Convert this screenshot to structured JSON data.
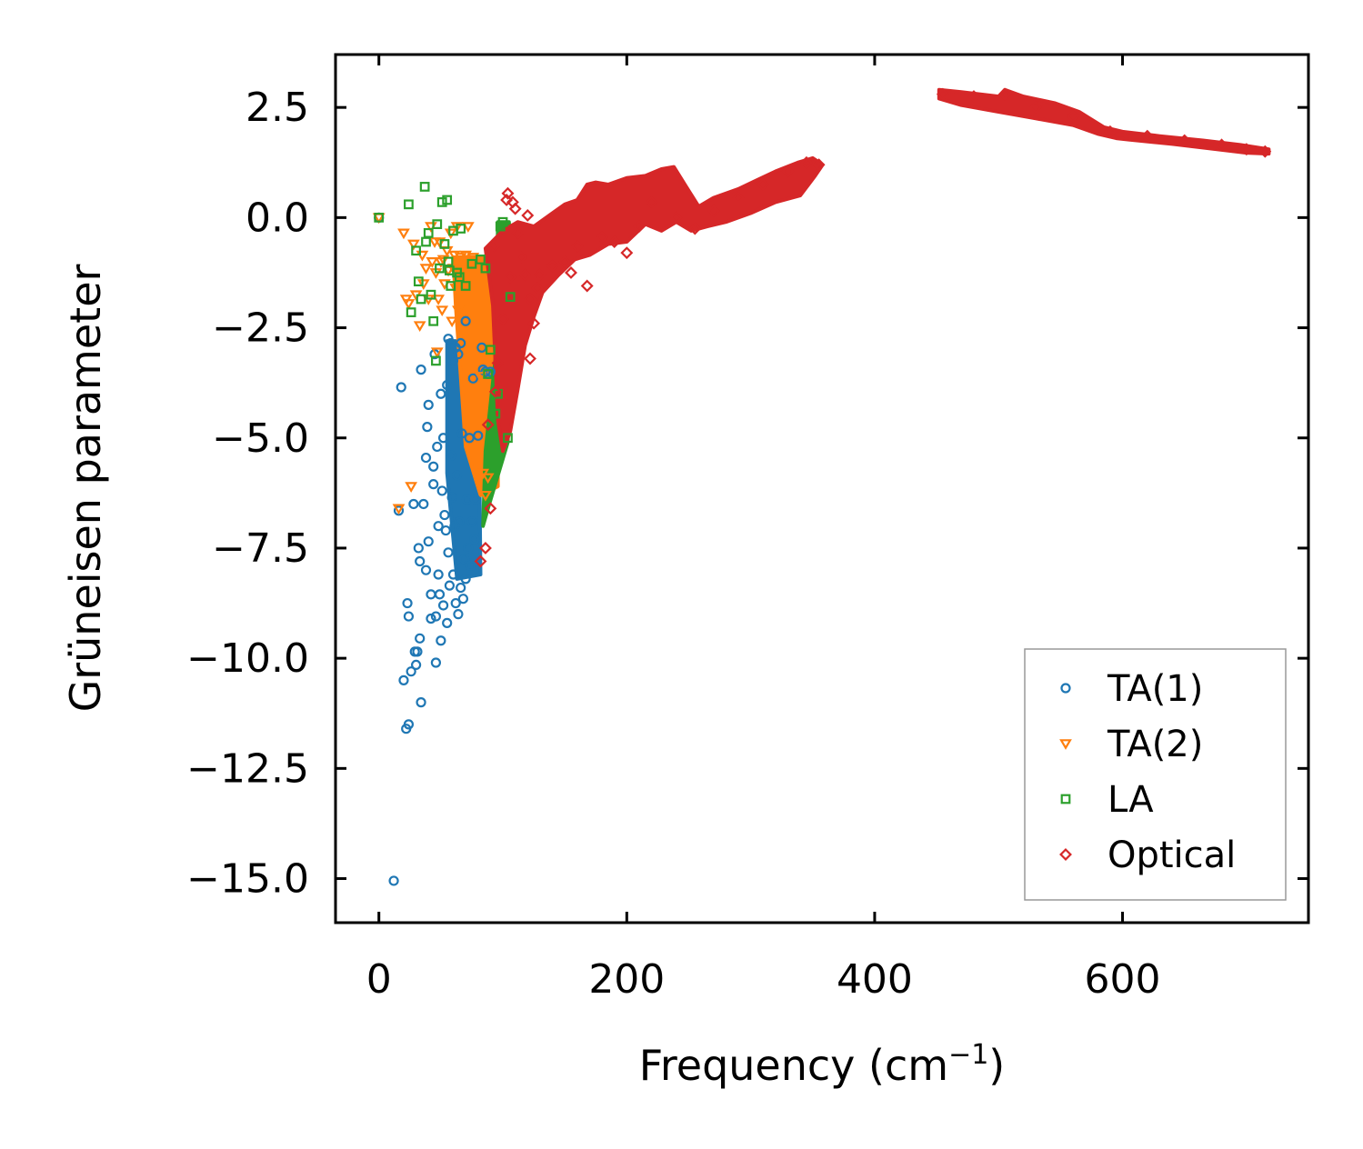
{
  "chart_data": {
    "type": "scatter",
    "title": "",
    "xlabel": "Frequency (cm",
    "xlabel_sup": "−1",
    "xlabel_suffix": ")",
    "ylabel": "Grüneisen parameter",
    "xlim": [
      -35,
      750
    ],
    "ylim": [
      -16,
      3.7
    ],
    "xticks": [
      0,
      200,
      400,
      600
    ],
    "xtick_labels": [
      "0",
      "200",
      "400",
      "600"
    ],
    "yticks": [
      2.5,
      0.0,
      -2.5,
      -5.0,
      -7.5,
      -10.0,
      -12.5,
      -15.0
    ],
    "ytick_labels": [
      "2.5",
      "0.0",
      "−2.5",
      "−5.0",
      "−7.5",
      "−10.0",
      "−12.5",
      "−15.0"
    ],
    "grid": false,
    "legend_position": "bottom-right",
    "series": [
      {
        "name": "TA(1)",
        "marker": "circle",
        "color": "#1f77b4",
        "points": [
          [
            0,
            0
          ],
          [
            12,
            -15.05
          ],
          [
            16,
            -6.65
          ],
          [
            18,
            -3.85
          ],
          [
            20,
            -10.5
          ],
          [
            22,
            -11.6
          ],
          [
            24,
            -11.5
          ],
          [
            23,
            -8.75
          ],
          [
            24,
            -9.05
          ],
          [
            26,
            -10.3
          ],
          [
            28,
            -6.5
          ],
          [
            29,
            -9.85
          ],
          [
            30,
            -10.15
          ],
          [
            31,
            -9.85
          ],
          [
            32,
            -7.5
          ],
          [
            33,
            -7.8
          ],
          [
            33,
            -9.55
          ],
          [
            34,
            -11.0
          ],
          [
            34,
            -3.45
          ],
          [
            36,
            -6.5
          ],
          [
            38,
            -5.45
          ],
          [
            38,
            -8.0
          ],
          [
            39,
            -4.75
          ],
          [
            40,
            -4.25
          ],
          [
            40,
            -7.35
          ],
          [
            42,
            -8.55
          ],
          [
            42,
            -9.1
          ],
          [
            44,
            -5.65
          ],
          [
            44,
            -6.05
          ],
          [
            45,
            -3.1
          ],
          [
            46,
            -9.05
          ],
          [
            46,
            -10.1
          ],
          [
            47,
            -5.2
          ],
          [
            48,
            -7.0
          ],
          [
            48,
            -8.1
          ],
          [
            49,
            -8.55
          ],
          [
            50,
            -4.0
          ],
          [
            50,
            -9.6
          ],
          [
            51,
            -6.2
          ],
          [
            52,
            -5.0
          ],
          [
            52,
            -8.8
          ],
          [
            53,
            -6.75
          ],
          [
            54,
            -7.1
          ],
          [
            55,
            -3.8
          ],
          [
            55,
            -9.2
          ],
          [
            56,
            -2.75
          ],
          [
            56,
            -7.6
          ],
          [
            57,
            -8.35
          ],
          [
            58,
            -5.4
          ],
          [
            58,
            -2.85
          ],
          [
            59,
            -6.35
          ],
          [
            60,
            -3.25
          ],
          [
            60,
            -8.1
          ],
          [
            61,
            -7.0
          ],
          [
            62,
            -2.95
          ],
          [
            62,
            -8.75
          ],
          [
            63,
            -5.85
          ],
          [
            64,
            -9.0
          ],
          [
            64,
            -3.1
          ],
          [
            65,
            -6.9
          ],
          [
            66,
            -8.4
          ],
          [
            66,
            -2.85
          ],
          [
            67,
            -4.9
          ],
          [
            68,
            -8.65
          ],
          [
            69,
            -7.75
          ],
          [
            70,
            -2.35
          ],
          [
            70,
            -8.2
          ],
          [
            71,
            -6.4
          ],
          [
            72,
            -7.5
          ],
          [
            73,
            -5.0
          ],
          [
            74,
            -7.9
          ],
          [
            75,
            -6.9
          ],
          [
            76,
            -3.65
          ],
          [
            77,
            -7.3
          ],
          [
            78,
            -6.4
          ],
          [
            80,
            -4.95
          ],
          [
            83,
            -2.95
          ],
          [
            84,
            -3.45
          ],
          [
            86,
            -3.5
          ],
          [
            88,
            -3.55
          ],
          [
            90,
            -3.5
          ]
        ],
        "dense_band": [
          [
            55,
            -2.8
          ],
          [
            80,
            -2.8
          ],
          [
            82,
            -8.1
          ],
          [
            63,
            -8.2
          ],
          [
            55,
            -5.8
          ]
        ]
      },
      {
        "name": "TA(2)",
        "marker": "triangle-down",
        "color": "#ff7f0e",
        "points": [
          [
            0,
            0
          ],
          [
            16,
            -6.6
          ],
          [
            20,
            -0.35
          ],
          [
            22,
            -1.85
          ],
          [
            24,
            -1.95
          ],
          [
            26,
            -6.1
          ],
          [
            28,
            -0.6
          ],
          [
            30,
            -1.75
          ],
          [
            33,
            -2.45
          ],
          [
            35,
            -0.85
          ],
          [
            36,
            -1.5
          ],
          [
            38,
            -1.15
          ],
          [
            40,
            -1.85
          ],
          [
            42,
            -0.2
          ],
          [
            43,
            -1.0
          ],
          [
            45,
            -0.55
          ],
          [
            46,
            -1.25
          ],
          [
            47,
            -3.05
          ],
          [
            48,
            -1.85
          ],
          [
            49,
            -0.55
          ],
          [
            50,
            -1.0
          ],
          [
            51,
            -2.1
          ],
          [
            52,
            -0.95
          ],
          [
            53,
            -1.5
          ],
          [
            55,
            -0.75
          ],
          [
            56,
            -1.2
          ],
          [
            58,
            -0.35
          ],
          [
            59,
            -2.35
          ],
          [
            60,
            -1.15
          ],
          [
            61,
            -0.85
          ],
          [
            62,
            -1.6
          ],
          [
            63,
            -0.2
          ],
          [
            64,
            -2.1
          ],
          [
            66,
            -0.9
          ],
          [
            68,
            -1.2
          ],
          [
            70,
            -0.85
          ],
          [
            72,
            -0.2
          ],
          [
            74,
            -0.95
          ],
          [
            76,
            -0.9
          ],
          [
            78,
            -1.0
          ],
          [
            80,
            -1.0
          ],
          [
            82,
            -3.6
          ],
          [
            84,
            -5.8
          ],
          [
            86,
            -6.3
          ],
          [
            88,
            -5.9
          ]
        ],
        "dense_band": [
          [
            60,
            -0.9
          ],
          [
            88,
            -0.9
          ],
          [
            96,
            -2.8
          ],
          [
            96,
            -6.1
          ],
          [
            82,
            -6.3
          ],
          [
            70,
            -5.2
          ],
          [
            62,
            -2.0
          ]
        ]
      },
      {
        "name": "LA",
        "marker": "square",
        "color": "#2ca02c",
        "points": [
          [
            0,
            0
          ],
          [
            24,
            0.3
          ],
          [
            26,
            -2.15
          ],
          [
            30,
            -0.75
          ],
          [
            32,
            -1.45
          ],
          [
            34,
            -1.85
          ],
          [
            37,
            0.7
          ],
          [
            38,
            -0.55
          ],
          [
            40,
            -0.35
          ],
          [
            42,
            -1.75
          ],
          [
            44,
            -2.35
          ],
          [
            46,
            -3.25
          ],
          [
            47,
            -0.15
          ],
          [
            49,
            -1.15
          ],
          [
            51,
            0.35
          ],
          [
            53,
            -0.6
          ],
          [
            55,
            0.4
          ],
          [
            56,
            -1.0
          ],
          [
            57,
            -1.2
          ],
          [
            58,
            -1.55
          ],
          [
            60,
            -0.3
          ],
          [
            63,
            -1.25
          ],
          [
            65,
            -1.35
          ],
          [
            66,
            -0.25
          ],
          [
            70,
            -1.55
          ],
          [
            75,
            -1.05
          ],
          [
            82,
            -0.95
          ],
          [
            86,
            -1.15
          ],
          [
            88,
            -3.55
          ],
          [
            90,
            -3.0
          ],
          [
            92,
            -5.2
          ],
          [
            94,
            -4.45
          ],
          [
            96,
            -4.0
          ],
          [
            98,
            -0.2
          ],
          [
            100,
            -0.1
          ],
          [
            104,
            -5.0
          ],
          [
            106,
            -1.8
          ]
        ],
        "dense_band": [
          [
            96,
            -0.1
          ],
          [
            105,
            -0.1
          ],
          [
            108,
            -1.9
          ],
          [
            104,
            -5.1
          ],
          [
            88,
            -6.6
          ],
          [
            84,
            -7.0
          ],
          [
            86,
            -5.3
          ],
          [
            94,
            -3.2
          ]
        ]
      },
      {
        "name": "Optical",
        "marker": "diamond",
        "color": "#d62728",
        "points": [
          [
            82,
            -7.8
          ],
          [
            86,
            -7.5
          ],
          [
            88,
            -4.7
          ],
          [
            90,
            -6.6
          ],
          [
            93,
            -0.65
          ],
          [
            94,
            -3.95
          ],
          [
            96,
            -3.3
          ],
          [
            100,
            -2.3
          ],
          [
            103,
            0.4
          ],
          [
            104,
            0.55
          ],
          [
            106,
            -1.35
          ],
          [
            108,
            0.35
          ],
          [
            110,
            0.2
          ],
          [
            112,
            -0.35
          ],
          [
            115,
            -0.9
          ],
          [
            118,
            -1.3
          ],
          [
            120,
            0.05
          ],
          [
            122,
            -3.2
          ],
          [
            122,
            -1.85
          ],
          [
            125,
            -2.4
          ],
          [
            128,
            -1.6
          ],
          [
            130,
            -1.3
          ],
          [
            140,
            -1.1
          ],
          [
            150,
            -1.0
          ],
          [
            155,
            -1.25
          ],
          [
            160,
            -0.65
          ],
          [
            168,
            -1.55
          ],
          [
            180,
            -0.45
          ],
          [
            190,
            -0.55
          ],
          [
            200,
            -0.8
          ],
          [
            210,
            -0.2
          ],
          [
            220,
            0.35
          ],
          [
            240,
            0.0
          ],
          [
            255,
            -0.25
          ],
          [
            270,
            0.15
          ],
          [
            290,
            0.45
          ],
          [
            310,
            0.75
          ],
          [
            330,
            1.05
          ],
          [
            345,
            1.25
          ],
          [
            355,
            1.2
          ],
          [
            455,
            2.8
          ],
          [
            480,
            2.75
          ],
          [
            505,
            2.8
          ],
          [
            530,
            2.5
          ],
          [
            560,
            2.3
          ],
          [
            590,
            1.95
          ],
          [
            620,
            1.85
          ],
          [
            650,
            1.75
          ],
          [
            680,
            1.65
          ],
          [
            700,
            1.55
          ],
          [
            715,
            1.5
          ]
        ],
        "dense_band": [
          [
            86,
            -0.7
          ],
          [
            100,
            -0.3
          ],
          [
            112,
            -0.1
          ],
          [
            125,
            -0.2
          ],
          [
            140,
            0.1
          ],
          [
            150,
            0.3
          ],
          [
            160,
            0.4
          ],
          [
            168,
            0.75
          ],
          [
            175,
            0.8
          ],
          [
            185,
            0.75
          ],
          [
            200,
            0.9
          ],
          [
            215,
            0.95
          ],
          [
            228,
            1.1
          ],
          [
            238,
            1.15
          ],
          [
            248,
            0.7
          ],
          [
            258,
            0.25
          ],
          [
            270,
            0.45
          ],
          [
            290,
            0.65
          ],
          [
            305,
            0.85
          ],
          [
            320,
            1.05
          ],
          [
            338,
            1.25
          ],
          [
            350,
            1.35
          ],
          [
            358,
            1.2
          ],
          [
            352,
            0.95
          ],
          [
            340,
            0.5
          ],
          [
            320,
            0.35
          ],
          [
            300,
            0.1
          ],
          [
            280,
            -0.1
          ],
          [
            265,
            -0.2
          ],
          [
            252,
            -0.3
          ],
          [
            240,
            -0.1
          ],
          [
            228,
            -0.3
          ],
          [
            215,
            -0.15
          ],
          [
            200,
            -0.55
          ],
          [
            185,
            -0.6
          ],
          [
            170,
            -0.85
          ],
          [
            158,
            -0.95
          ],
          [
            145,
            -1.3
          ],
          [
            132,
            -1.7
          ],
          [
            125,
            -2.25
          ],
          [
            118,
            -2.9
          ],
          [
            112,
            -3.9
          ],
          [
            106,
            -4.85
          ],
          [
            100,
            -5.3
          ],
          [
            96,
            -4.6
          ],
          [
            92,
            -2.0
          ]
        ],
        "dense_band_2": [
          [
            452,
            2.9
          ],
          [
            470,
            2.85
          ],
          [
            500,
            2.75
          ],
          [
            505,
            2.9
          ],
          [
            520,
            2.75
          ],
          [
            545,
            2.6
          ],
          [
            565,
            2.4
          ],
          [
            585,
            2.05
          ],
          [
            600,
            1.95
          ],
          [
            630,
            1.85
          ],
          [
            665,
            1.75
          ],
          [
            695,
            1.65
          ],
          [
            718,
            1.55
          ],
          [
            718,
            1.45
          ],
          [
            700,
            1.47
          ],
          [
            670,
            1.57
          ],
          [
            640,
            1.67
          ],
          [
            605,
            1.77
          ],
          [
            595,
            1.8
          ],
          [
            580,
            1.9
          ],
          [
            560,
            2.1
          ],
          [
            530,
            2.25
          ],
          [
            500,
            2.4
          ],
          [
            470,
            2.55
          ],
          [
            452,
            2.7
          ]
        ]
      }
    ]
  }
}
